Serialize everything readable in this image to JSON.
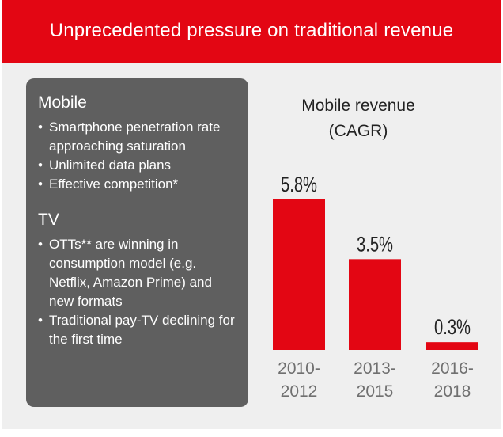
{
  "header": {
    "title": "Unprecedented pressure on traditional revenue"
  },
  "info_box": {
    "sections": [
      {
        "title": "Mobile",
        "bullets": [
          "Smartphone penetration rate approaching saturation",
          "Unlimited data plans",
          "Effective competition*"
        ]
      },
      {
        "title": "TV",
        "bullets": [
          "OTTs** are winning in consumption model (e.g. Netflix, Amazon Prime) and new formats",
          "Traditional pay-TV declining for the first time"
        ]
      }
    ]
  },
  "chart_data": {
    "type": "bar",
    "title": "Mobile revenue (CAGR)",
    "title_lines": [
      "Mobile revenue",
      "(CAGR)"
    ],
    "categories": [
      "2010-2012",
      "2013-2015",
      "2016-2018"
    ],
    "category_lines": [
      [
        "2010-",
        "2012"
      ],
      [
        "2013-",
        "2015"
      ],
      [
        "2016-",
        "2018"
      ]
    ],
    "values": [
      5.8,
      3.5,
      0.3
    ],
    "value_labels": [
      "5.8%",
      "3.5%",
      "0.3%"
    ],
    "unit": "%",
    "ylim": [
      0,
      6
    ],
    "grid": false,
    "legend": "none",
    "bar_color": "#e30613"
  },
  "colors": {
    "accent": "#e30613",
    "panel_background": "#efefef",
    "box_background": "#5f5f5f"
  }
}
